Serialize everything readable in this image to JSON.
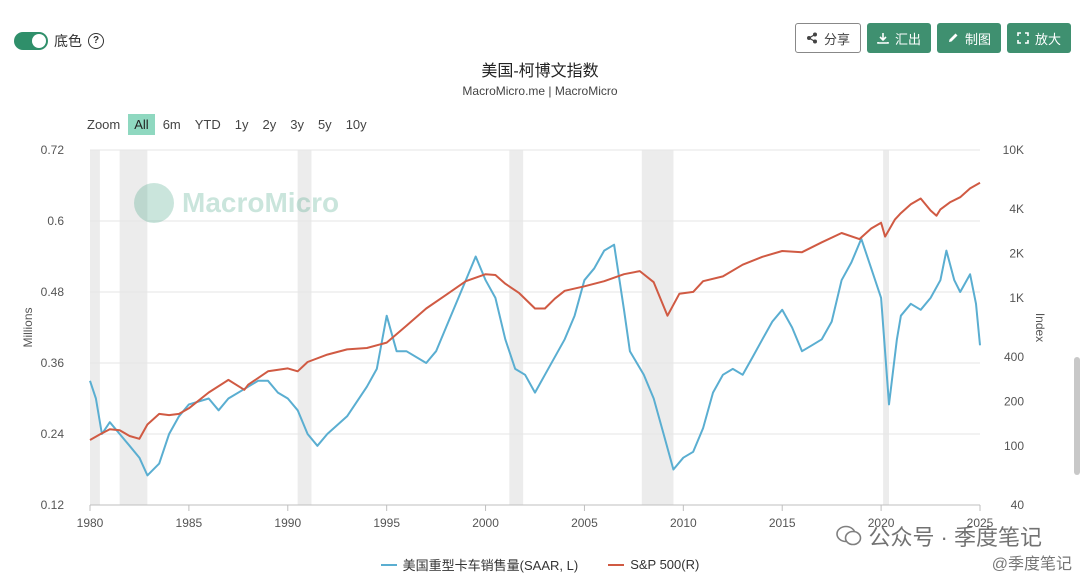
{
  "toggle": {
    "label": "底色",
    "help": "?"
  },
  "toolbar": {
    "share": "分享",
    "export": "汇出",
    "draw": "制图",
    "zoom": "放大"
  },
  "chart_title": "美国-柯博文指数",
  "chart_subtitle": "MacroMicro.me | MacroMicro",
  "zoom_label": "Zoom",
  "zoom_options": [
    "All",
    "6m",
    "YTD",
    "1y",
    "2y",
    "3y",
    "5y",
    "10y"
  ],
  "watermark_text": "MacroMicro",
  "wechat_line1": "公众号 · 季度笔记",
  "wechat_line2": "@季度笔记",
  "colors": {
    "left_series": "#5aaed1",
    "right_series": "#d05a43",
    "recession_band": "#ececec",
    "accent": "#3f9070"
  },
  "chart_data": {
    "type": "line",
    "xlabel": "",
    "x_ticks": [
      1980,
      1985,
      1990,
      1995,
      2000,
      2005,
      2010,
      2015,
      2020,
      2025
    ],
    "xlim": [
      1980,
      2025
    ],
    "left_axis": {
      "label": "Millions",
      "ticks": [
        "0.12",
        "0.24",
        "0.36",
        "0.48",
        "0.6",
        "0.72"
      ],
      "ylim": [
        0.12,
        0.72
      ]
    },
    "right_axis": {
      "label": "Index",
      "scale": "log",
      "ticks": [
        "40",
        "100",
        "200",
        "400",
        "1K",
        "2K",
        "4K",
        "10K"
      ],
      "tick_values": [
        40,
        100,
        200,
        400,
        1000,
        2000,
        4000,
        10000
      ],
      "ylim": [
        40,
        10000
      ]
    },
    "recessions": [
      [
        1980.0,
        1980.5
      ],
      [
        1981.5,
        1982.9
      ],
      [
        1990.5,
        1991.2
      ],
      [
        2001.2,
        2001.9
      ],
      [
        2007.9,
        2009.5
      ],
      [
        2020.1,
        2020.4
      ]
    ],
    "series": [
      {
        "name": "美国重型卡车销售量(SAAR, L)",
        "axis": "left",
        "points": [
          [
            1980.0,
            0.33
          ],
          [
            1980.3,
            0.3
          ],
          [
            1980.6,
            0.24
          ],
          [
            1981.0,
            0.26
          ],
          [
            1981.5,
            0.24
          ],
          [
            1982.0,
            0.22
          ],
          [
            1982.5,
            0.2
          ],
          [
            1982.9,
            0.17
          ],
          [
            1983.5,
            0.19
          ],
          [
            1984.0,
            0.24
          ],
          [
            1984.5,
            0.27
          ],
          [
            1985.0,
            0.29
          ],
          [
            1986.0,
            0.3
          ],
          [
            1986.5,
            0.28
          ],
          [
            1987.0,
            0.3
          ],
          [
            1988.0,
            0.32
          ],
          [
            1988.5,
            0.33
          ],
          [
            1989.0,
            0.33
          ],
          [
            1989.5,
            0.31
          ],
          [
            1990.0,
            0.3
          ],
          [
            1990.5,
            0.28
          ],
          [
            1991.0,
            0.24
          ],
          [
            1991.5,
            0.22
          ],
          [
            1992.0,
            0.24
          ],
          [
            1993.0,
            0.27
          ],
          [
            1994.0,
            0.32
          ],
          [
            1994.5,
            0.35
          ],
          [
            1995.0,
            0.44
          ],
          [
            1995.5,
            0.38
          ],
          [
            1996.0,
            0.38
          ],
          [
            1997.0,
            0.36
          ],
          [
            1997.5,
            0.38
          ],
          [
            1998.0,
            0.42
          ],
          [
            1999.0,
            0.5
          ],
          [
            1999.5,
            0.54
          ],
          [
            2000.0,
            0.5
          ],
          [
            2000.5,
            0.47
          ],
          [
            2001.0,
            0.4
          ],
          [
            2001.5,
            0.35
          ],
          [
            2002.0,
            0.34
          ],
          [
            2002.5,
            0.31
          ],
          [
            2003.0,
            0.34
          ],
          [
            2004.0,
            0.4
          ],
          [
            2004.5,
            0.44
          ],
          [
            2005.0,
            0.5
          ],
          [
            2005.5,
            0.52
          ],
          [
            2006.0,
            0.55
          ],
          [
            2006.5,
            0.56
          ],
          [
            2007.0,
            0.45
          ],
          [
            2007.3,
            0.38
          ],
          [
            2008.0,
            0.34
          ],
          [
            2008.5,
            0.3
          ],
          [
            2009.0,
            0.24
          ],
          [
            2009.5,
            0.18
          ],
          [
            2010.0,
            0.2
          ],
          [
            2010.5,
            0.21
          ],
          [
            2011.0,
            0.25
          ],
          [
            2011.5,
            0.31
          ],
          [
            2012.0,
            0.34
          ],
          [
            2012.5,
            0.35
          ],
          [
            2013.0,
            0.34
          ],
          [
            2013.5,
            0.37
          ],
          [
            2014.0,
            0.4
          ],
          [
            2014.5,
            0.43
          ],
          [
            2015.0,
            0.45
          ],
          [
            2015.5,
            0.42
          ],
          [
            2016.0,
            0.38
          ],
          [
            2016.5,
            0.39
          ],
          [
            2017.0,
            0.4
          ],
          [
            2017.5,
            0.43
          ],
          [
            2018.0,
            0.5
          ],
          [
            2018.5,
            0.53
          ],
          [
            2019.0,
            0.57
          ],
          [
            2019.5,
            0.52
          ],
          [
            2020.0,
            0.47
          ],
          [
            2020.4,
            0.29
          ],
          [
            2020.8,
            0.4
          ],
          [
            2021.0,
            0.44
          ],
          [
            2021.5,
            0.46
          ],
          [
            2022.0,
            0.45
          ],
          [
            2022.5,
            0.47
          ],
          [
            2023.0,
            0.5
          ],
          [
            2023.3,
            0.55
          ],
          [
            2023.7,
            0.5
          ],
          [
            2024.0,
            0.48
          ],
          [
            2024.5,
            0.51
          ],
          [
            2024.8,
            0.46
          ],
          [
            2025.0,
            0.39
          ]
        ]
      },
      {
        "name": "S&P 500(R)",
        "axis": "right",
        "points": [
          [
            1980.0,
            110
          ],
          [
            1980.5,
            120
          ],
          [
            1981.0,
            130
          ],
          [
            1981.5,
            128
          ],
          [
            1982.0,
            117
          ],
          [
            1982.5,
            112
          ],
          [
            1982.9,
            140
          ],
          [
            1983.5,
            165
          ],
          [
            1984.0,
            162
          ],
          [
            1984.5,
            165
          ],
          [
            1985.0,
            180
          ],
          [
            1986.0,
            230
          ],
          [
            1987.0,
            280
          ],
          [
            1987.8,
            240
          ],
          [
            1988.0,
            260
          ],
          [
            1989.0,
            320
          ],
          [
            1990.0,
            335
          ],
          [
            1990.5,
            320
          ],
          [
            1991.0,
            370
          ],
          [
            1992.0,
            415
          ],
          [
            1993.0,
            450
          ],
          [
            1994.0,
            460
          ],
          [
            1995.0,
            500
          ],
          [
            1996.0,
            650
          ],
          [
            1997.0,
            850
          ],
          [
            1998.0,
            1050
          ],
          [
            1999.0,
            1300
          ],
          [
            2000.0,
            1450
          ],
          [
            2000.5,
            1430
          ],
          [
            2001.0,
            1250
          ],
          [
            2001.7,
            1080
          ],
          [
            2002.5,
            850
          ],
          [
            2003.0,
            850
          ],
          [
            2003.5,
            990
          ],
          [
            2004.0,
            1120
          ],
          [
            2005.0,
            1200
          ],
          [
            2006.0,
            1300
          ],
          [
            2007.0,
            1450
          ],
          [
            2007.8,
            1520
          ],
          [
            2008.5,
            1280
          ],
          [
            2009.2,
            760
          ],
          [
            2009.8,
            1070
          ],
          [
            2010.5,
            1100
          ],
          [
            2011.0,
            1300
          ],
          [
            2012.0,
            1400
          ],
          [
            2013.0,
            1680
          ],
          [
            2014.0,
            1900
          ],
          [
            2015.0,
            2080
          ],
          [
            2016.0,
            2040
          ],
          [
            2017.0,
            2380
          ],
          [
            2018.0,
            2750
          ],
          [
            2018.9,
            2500
          ],
          [
            2019.5,
            2950
          ],
          [
            2020.0,
            3230
          ],
          [
            2020.2,
            2600
          ],
          [
            2020.7,
            3400
          ],
          [
            2021.0,
            3750
          ],
          [
            2021.5,
            4300
          ],
          [
            2022.0,
            4700
          ],
          [
            2022.5,
            3900
          ],
          [
            2022.8,
            3600
          ],
          [
            2023.0,
            3970
          ],
          [
            2023.5,
            4450
          ],
          [
            2024.0,
            4800
          ],
          [
            2024.5,
            5500
          ],
          [
            2025.0,
            6000
          ]
        ]
      }
    ]
  }
}
